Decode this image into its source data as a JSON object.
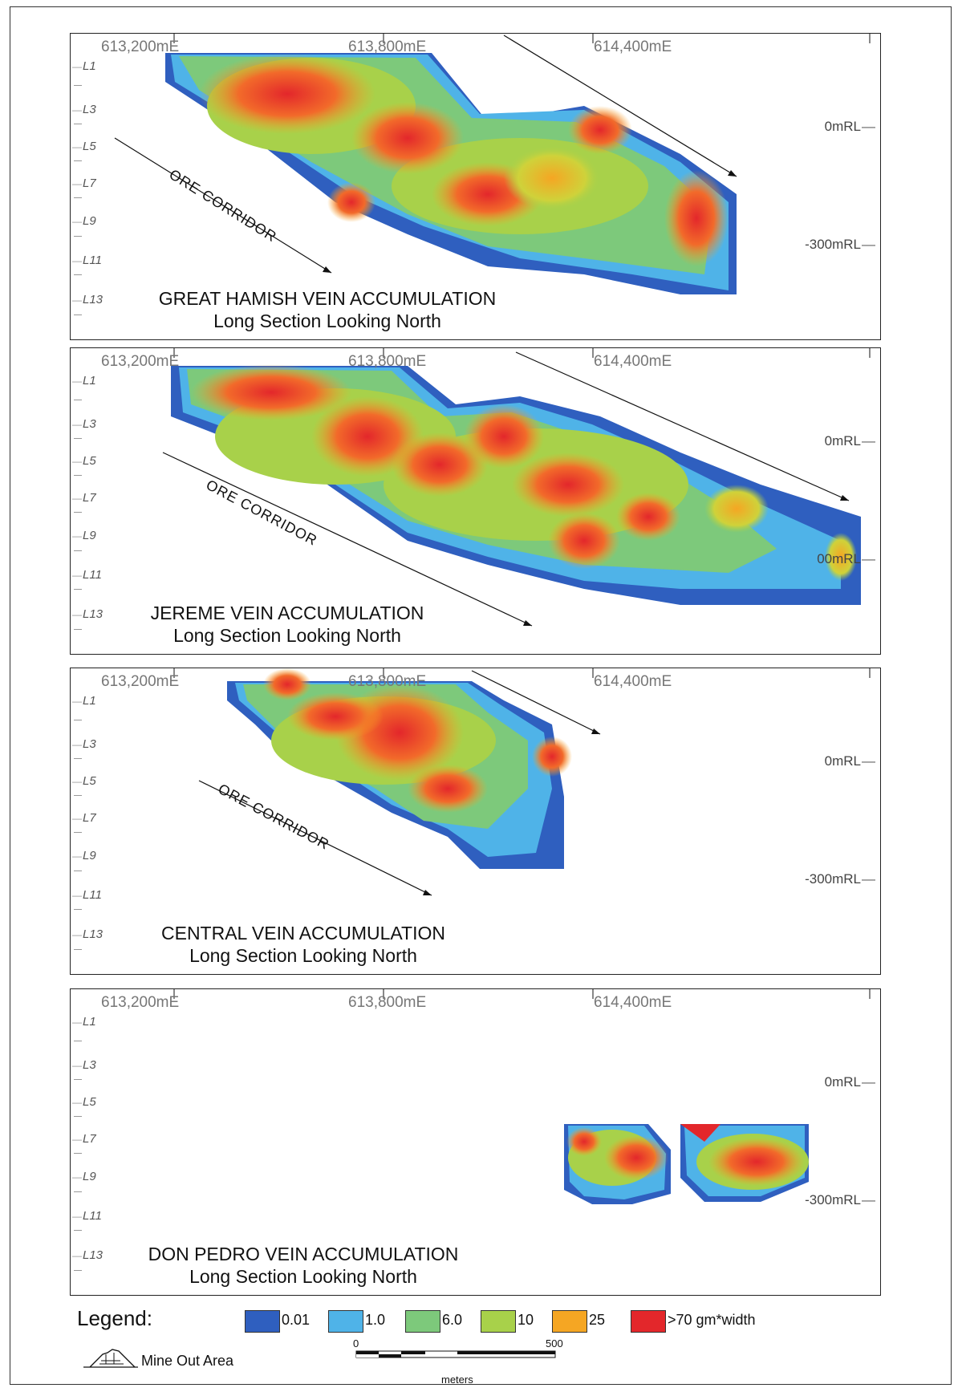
{
  "panels": [
    {
      "title": "GREAT HAMISH VEIN ACCUMULATION",
      "subtitle": "Long Section Looking North",
      "corridor_label": "ORE CORRIDOR",
      "rl_labels": [
        "0mRL",
        "-300mRL"
      ]
    },
    {
      "title": "JEREME VEIN ACCUMULATION",
      "subtitle": "Long Section Looking North",
      "corridor_label": "ORE CORRIDOR",
      "rl_labels": [
        "0mRL",
        "00mRL"
      ]
    },
    {
      "title": "CENTRAL VEIN ACCUMULATION",
      "subtitle": "Long Section Looking North",
      "corridor_label": "ORE CORRIDOR",
      "rl_labels": [
        "0mRL",
        "-300mRL"
      ]
    },
    {
      "title": "DON PEDRO VEIN ACCUMULATION",
      "subtitle": "Long Section Looking North",
      "corridor_label": "",
      "rl_labels": [
        "0mRL",
        "-300mRL"
      ]
    }
  ],
  "eastings": [
    "613,200mE",
    "613,800mE",
    "614,400mE"
  ],
  "levels": [
    "L1",
    "L3",
    "L5",
    "L7",
    "L9",
    "L11",
    "L13"
  ],
  "legend": {
    "title": "Legend:",
    "items": [
      {
        "label": "0.01",
        "color": "#2f5fbf"
      },
      {
        "label": "1.0",
        "color": "#4fb3e8"
      },
      {
        "label": "6.0",
        "color": "#7dc97b"
      },
      {
        "label": "10",
        "color": "#a8d14a"
      },
      {
        "label": "25",
        "color": "#f5a623"
      },
      {
        "label": ">70 gm*width",
        "color": "#e3272b"
      }
    ],
    "mine_out_label": "Mine Out Area"
  },
  "scale_bar": {
    "start": "0",
    "end": "500",
    "unit": "meters"
  }
}
